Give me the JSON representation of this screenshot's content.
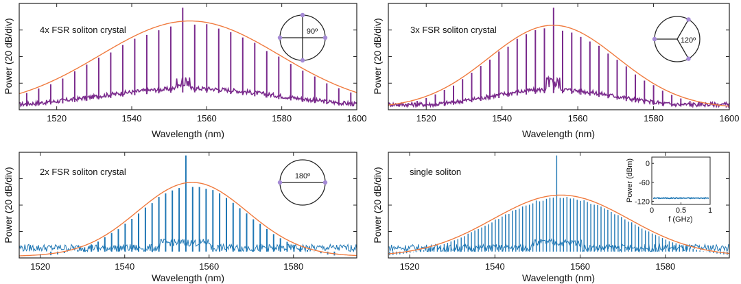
{
  "colors": {
    "purple": "#7a2a8c",
    "blue": "#1f77b4",
    "envelope": "#f07b3f",
    "marker": "#a58ad6",
    "axis": "#222222"
  },
  "chart_data": [
    {
      "type": "line",
      "title": "4x FSR soliton crystal",
      "xlabel": "Wavelength (nm)",
      "ylabel": "Power (20 dB/div)",
      "xlim": [
        1510,
        1600
      ],
      "xticks": [
        1520,
        1540,
        1560,
        1580,
        1600
      ],
      "ylim": [
        0,
        1
      ],
      "series_color": "purple",
      "peak_wavelength": 1553.6,
      "comb_spacing_nm": 3.2,
      "envelope": {
        "center": 1555.5,
        "peak": 0.82,
        "width": 24
      },
      "inset": {
        "type": "phase-circle",
        "label": "90º",
        "marker_angles_deg": [
          0,
          90,
          180,
          270
        ]
      }
    },
    {
      "type": "line",
      "title": "3x FSR soliton crystal",
      "xlabel": "Wavelength (nm)",
      "ylabel": "Power (20 dB/div)",
      "xlim": [
        1510,
        1600
      ],
      "xticks": [
        1520,
        1540,
        1560,
        1580,
        1600
      ],
      "ylim": [
        0,
        1
      ],
      "series_color": "purple",
      "peak_wavelength": 1553.6,
      "comb_spacing_nm": 2.4,
      "envelope": {
        "center": 1553.5,
        "peak": 0.78,
        "width": 17
      },
      "inset": {
        "type": "phase-circle",
        "label": "120º",
        "marker_angles_deg": [
          60,
          180,
          300
        ]
      }
    },
    {
      "type": "line",
      "title": "2x FSR soliton crystal",
      "xlabel": "Wavelength (nm)",
      "ylabel": "Power (20 dB/div)",
      "xlim": [
        1515,
        1595
      ],
      "xticks": [
        1520,
        1540,
        1560,
        1580
      ],
      "ylim": [
        0,
        1
      ],
      "series_color": "blue",
      "peak_wavelength": 1554.5,
      "comb_spacing_nm": 1.6,
      "envelope": {
        "center": 1556,
        "peak": 0.7,
        "width": 13
      },
      "inset": {
        "type": "phase-circle",
        "label": "180º",
        "marker_angles_deg": [
          0,
          180
        ]
      }
    },
    {
      "type": "line",
      "title": "single soliton",
      "xlabel": "Wavelength (nm)",
      "ylabel": "Power (20 dB/div)",
      "xlim": [
        1515,
        1595
      ],
      "xticks": [
        1520,
        1540,
        1560,
        1580
      ],
      "ylim": [
        0,
        1
      ],
      "series_color": "blue",
      "peak_wavelength": 1554.5,
      "comb_spacing_nm": 0.8,
      "envelope": {
        "center": 1555.5,
        "peak": 0.58,
        "width": 16
      },
      "inset": {
        "type": "rf-spectrum",
        "xlabel": "f (GHz)",
        "ylabel": "Power (dBm)",
        "xlim": [
          0,
          1
        ],
        "ylim": [
          -130,
          20
        ],
        "xticks": [
          "0",
          "0.5",
          "1"
        ],
        "yticks": [
          "0",
          "-60",
          "-120"
        ],
        "noise_floor_dbm": -110
      }
    }
  ]
}
